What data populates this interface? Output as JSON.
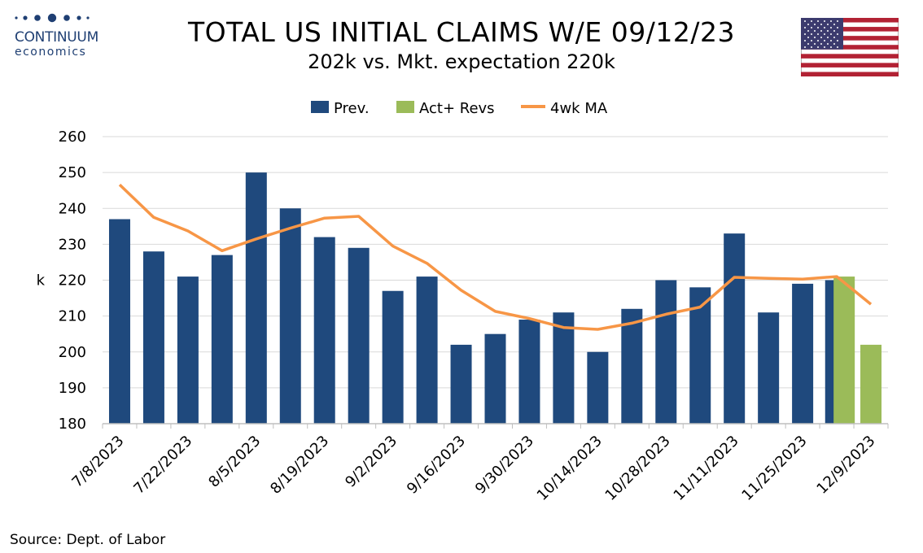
{
  "header": {
    "title": "TOTAL US INITIAL CLAIMS W/E 09/12/23",
    "subtitle": "202k vs. Mkt. expectation 220k"
  },
  "logo": {
    "word": "CONTINUUM",
    "sub": "economics"
  },
  "source": "Source: Dept. of Labor",
  "colors": {
    "prev": "#1f497d",
    "act": "#9bbb59",
    "ma": "#f79646",
    "grid": "#d9d9d9",
    "logo": "#1f3f73"
  },
  "icons": {
    "flag": "us-flag-icon"
  },
  "chart_data": {
    "type": "bar",
    "ylabel": "k",
    "ylim": [
      180,
      260
    ],
    "yticks": [
      180,
      190,
      200,
      210,
      220,
      230,
      240,
      250,
      260
    ],
    "grid": true,
    "legend_position": "top",
    "x": [
      "7/8/2023",
      "7/15/2023",
      "7/22/2023",
      "7/29/2023",
      "8/5/2023",
      "8/12/2023",
      "8/19/2023",
      "8/26/2023",
      "9/2/2023",
      "9/9/2023",
      "9/16/2023",
      "9/23/2023",
      "9/30/2023",
      "10/7/2023",
      "10/14/2023",
      "10/21/2023",
      "10/28/2023",
      "11/4/2023",
      "11/11/2023",
      "11/18/2023",
      "11/25/2023",
      "12/2/2023",
      "12/9/2023"
    ],
    "xtick_labels": [
      "7/8/2023",
      "7/22/2023",
      "8/5/2023",
      "8/19/2023",
      "9/2/2023",
      "9/16/2023",
      "9/30/2023",
      "10/14/2023",
      "10/28/2023",
      "11/11/2023",
      "11/25/2023",
      "12/9/2023"
    ],
    "series": [
      {
        "name": "Prev.",
        "type": "bar",
        "values": [
          237,
          228,
          221,
          227,
          250,
          240,
          232,
          229,
          217,
          221,
          202,
          205,
          209,
          211,
          200,
          212,
          220,
          218,
          233,
          211,
          219,
          220,
          null
        ]
      },
      {
        "name": "Act+ Revs",
        "type": "bar",
        "values": [
          null,
          null,
          null,
          null,
          null,
          null,
          null,
          null,
          null,
          null,
          null,
          null,
          null,
          null,
          null,
          null,
          null,
          null,
          null,
          null,
          null,
          221,
          202
        ]
      },
      {
        "name": "4wk MA",
        "type": "line",
        "values": [
          246.6,
          237.5,
          233.7,
          228.2,
          231.5,
          234.5,
          237.3,
          237.8,
          229.5,
          224.7,
          217.2,
          211.3,
          209.3,
          206.8,
          206.3,
          208.0,
          210.5,
          212.5,
          220.8,
          220.5,
          220.3,
          221.0,
          213.3
        ]
      }
    ]
  }
}
